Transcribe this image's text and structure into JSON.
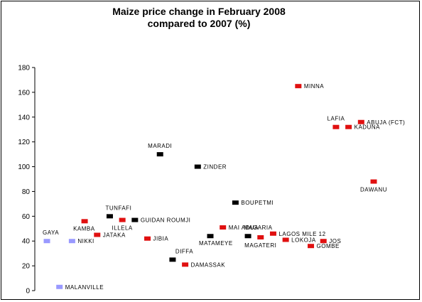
{
  "chart_data": {
    "type": "scatter",
    "title_line1": "Maize price change in February  2008",
    "title_line2": "compared to  2007 (%)",
    "xlabel": "",
    "ylabel": "",
    "ylim": [
      0,
      180
    ],
    "yticks": [
      0,
      20,
      40,
      60,
      80,
      100,
      120,
      140,
      160,
      180
    ],
    "grid": false,
    "legend": "none",
    "x_index_range": [
      1,
      27
    ],
    "colors": {
      "red": "#e01010",
      "black": "#000000",
      "lavender": "#9999ff"
    },
    "points": [
      {
        "label": "GAYA",
        "x": 1,
        "y": 40,
        "color": "lavender",
        "label_pos": "above-left"
      },
      {
        "label": "MALANVILLE",
        "x": 2,
        "y": 3,
        "color": "lavender",
        "label_pos": "right"
      },
      {
        "label": "NIKKI",
        "x": 3,
        "y": 40,
        "color": "lavender",
        "label_pos": "right"
      },
      {
        "label": "KAMBA",
        "x": 4,
        "y": 56,
        "color": "red",
        "label_pos": "below-left"
      },
      {
        "label": "JATAKA",
        "x": 5,
        "y": 45,
        "color": "red",
        "label_pos": "right"
      },
      {
        "label": "TUNFAFI",
        "x": 6,
        "y": 60,
        "color": "black",
        "label_pos": "above-left"
      },
      {
        "label": "ILLELA",
        "x": 7,
        "y": 57,
        "color": "red",
        "label_pos": "below"
      },
      {
        "label": "GUIDAN ROUMJI",
        "x": 8,
        "y": 57,
        "color": "black",
        "label_pos": "right"
      },
      {
        "label": "JIBIA",
        "x": 9,
        "y": 42,
        "color": "red",
        "label_pos": "right"
      },
      {
        "label": "MARADI",
        "x": 10,
        "y": 110,
        "color": "black",
        "label_pos": "above"
      },
      {
        "label": "DIFFA",
        "x": 11,
        "y": 25,
        "color": "black",
        "label_pos": "above-right"
      },
      {
        "label": "DAMASSAK",
        "x": 12,
        "y": 21,
        "color": "red",
        "label_pos": "right"
      },
      {
        "label": "ZINDER",
        "x": 13,
        "y": 100,
        "color": "black",
        "label_pos": "right"
      },
      {
        "label": "MATAMEYE",
        "x": 14,
        "y": 44,
        "color": "black",
        "label_pos": "below-left"
      },
      {
        "label": "MAI ADUA",
        "x": 15,
        "y": 51,
        "color": "red",
        "label_pos": "right"
      },
      {
        "label": "BOUPETMI",
        "x": 16,
        "y": 71,
        "color": "black",
        "label_pos": "right"
      },
      {
        "label": "MAGARIA",
        "x": 17,
        "y": 44,
        "color": "black",
        "label_pos": "above-left"
      },
      {
        "label": "MAGATERI",
        "x": 18,
        "y": 43,
        "color": "red",
        "label_pos": "below"
      },
      {
        "label": "LAGOS MILE 12",
        "x": 19,
        "y": 46,
        "color": "red",
        "label_pos": "right"
      },
      {
        "label": "LOKOJA",
        "x": 20,
        "y": 41,
        "color": "red",
        "label_pos": "right"
      },
      {
        "label": "MINNA",
        "x": 21,
        "y": 165,
        "color": "red",
        "label_pos": "right"
      },
      {
        "label": "GOMBE",
        "x": 22,
        "y": 36,
        "color": "red",
        "label_pos": "right"
      },
      {
        "label": "JOS",
        "x": 23,
        "y": 40,
        "color": "red",
        "label_pos": "right"
      },
      {
        "label": "LAFIA",
        "x": 24,
        "y": 132,
        "color": "red",
        "label_pos": "above"
      },
      {
        "label": "KADUNA",
        "x": 25,
        "y": 132,
        "color": "red",
        "label_pos": "right"
      },
      {
        "label": "ABUJA (FCT)",
        "x": 26,
        "y": 136,
        "color": "red",
        "label_pos": "right"
      },
      {
        "label": "DAWANU",
        "x": 27,
        "y": 88,
        "color": "red",
        "label_pos": "below"
      }
    ]
  }
}
